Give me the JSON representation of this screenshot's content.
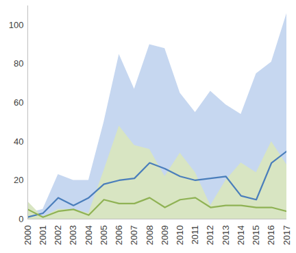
{
  "chart_data": {
    "type": "line",
    "x": [
      2000,
      2001,
      2002,
      2003,
      2004,
      2005,
      2006,
      2007,
      2008,
      2009,
      2010,
      2011,
      2012,
      2013,
      2014,
      2015,
      2016,
      2017
    ],
    "xlim": [
      2000,
      2017
    ],
    "xticks": [
      2000,
      2001,
      2002,
      2003,
      2004,
      2005,
      2006,
      2007,
      2008,
      2009,
      2010,
      2011,
      2012,
      2013,
      2014,
      2015,
      2016,
      2017
    ],
    "ylim": [
      0,
      110
    ],
    "yticks": [
      0,
      20,
      40,
      60,
      80,
      100
    ],
    "grid": false,
    "series": [
      {
        "type": "area",
        "color": "#c6d7f0",
        "values": [
          3,
          5,
          23,
          20,
          20,
          50,
          85,
          67,
          90,
          88,
          65,
          55,
          66,
          59,
          54,
          75,
          81,
          106
        ]
      },
      {
        "type": "area",
        "color": "#d8e5c2",
        "values": [
          9,
          1,
          5,
          5,
          3,
          25,
          48,
          38,
          36,
          22,
          34,
          24,
          7,
          20,
          29,
          24,
          40,
          28
        ]
      },
      {
        "type": "line",
        "color": "#4a7ebb",
        "values": [
          1,
          3,
          11,
          7,
          11,
          18,
          20,
          21,
          29,
          26,
          22,
          20,
          21,
          22,
          12,
          10,
          29,
          35
        ]
      },
      {
        "type": "line",
        "color": "#8fb254",
        "values": [
          5,
          1,
          4,
          5,
          2,
          10,
          8,
          8,
          11,
          6,
          10,
          11,
          6,
          7,
          7,
          6,
          6,
          4
        ]
      }
    ]
  }
}
